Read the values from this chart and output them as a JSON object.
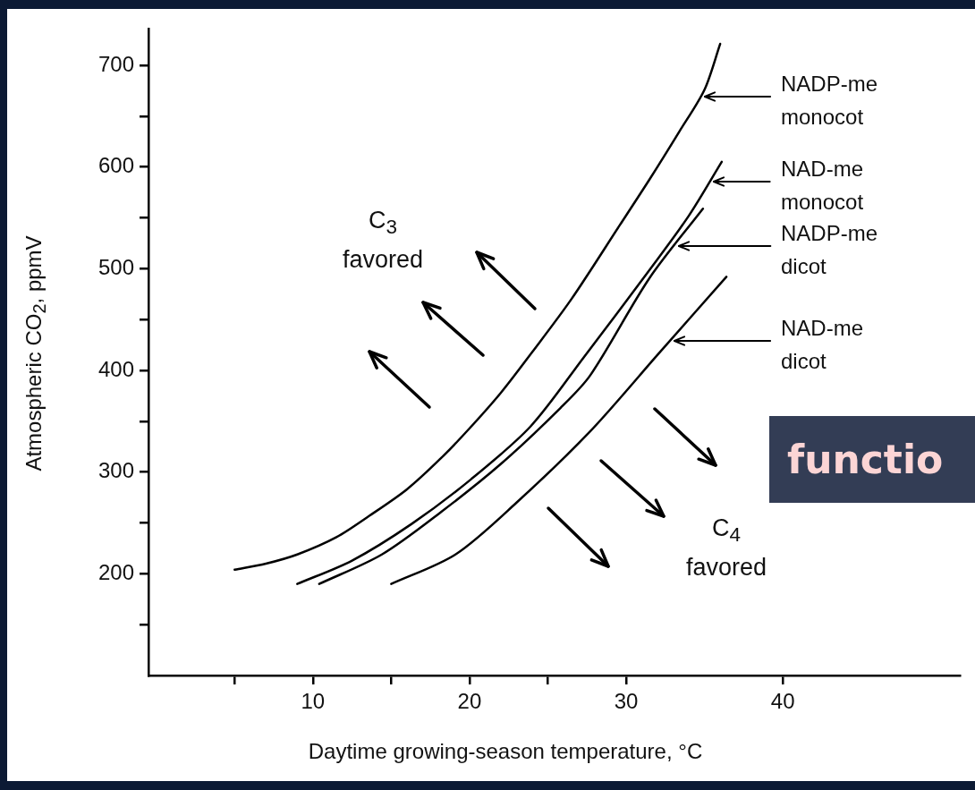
{
  "chart_data": {
    "type": "line",
    "xlabel": "Daytime growing-season temperature, °C",
    "ylabel": "Atmospheric CO$_{2}$, ppmV",
    "xlim": [
      -0.5,
      51.3
    ],
    "ylim": [
      100,
      736
    ],
    "xticks": [
      {
        "value": 5,
        "label": null
      },
      10,
      {
        "value": 15,
        "label": null
      },
      20,
      {
        "value": 25,
        "label": null
      },
      30,
      40
    ],
    "yticks": [
      {
        "value": 150,
        "label": null
      },
      200,
      {
        "value": 250,
        "label": null
      },
      300,
      {
        "value": 350,
        "label": null
      },
      400,
      {
        "value": 450,
        "label": null
      },
      500,
      {
        "value": 550,
        "label": null
      },
      600,
      {
        "value": 650,
        "label": null
      },
      700
    ],
    "grid": false,
    "legend": "right",
    "series": [
      {
        "name": "NADP-me monocot",
        "color": "#000000",
        "x": [
          5,
          7,
          9,
          11.5,
          13.6,
          16,
          18.2,
          20,
          22,
          24,
          26.5,
          29.6,
          31.5,
          33.4,
          35,
          36
        ],
        "values": [
          204,
          210,
          219,
          236,
          257,
          283,
          314,
          343,
          378,
          418,
          470,
          543,
          588,
          635,
          676,
          721
        ]
      },
      {
        "name": "NAD-me monocot",
        "color": "#000000",
        "x": [
          9,
          12.5,
          16.3,
          20.1,
          23.9,
          27.3,
          31.5,
          34,
          36.1
        ],
        "values": [
          190,
          213,
          249,
          293,
          345,
          413,
          499,
          552,
          605
        ]
      },
      {
        "name": "NADP-me dicot",
        "color": "#000000",
        "x": [
          10.4,
          14.4,
          18.2,
          22,
          25.8,
          27.7,
          31.5,
          34.9
        ],
        "values": [
          190,
          219,
          261,
          308,
          363,
          395,
          491,
          559
        ]
      },
      {
        "name": "NAD-me dicot",
        "color": "#000000",
        "x": [
          15,
          19.1,
          23,
          27.7,
          32.1,
          36.4
        ],
        "values": [
          190,
          219,
          270,
          340,
          417,
          492
        ]
      }
    ],
    "annotations": [
      "C$_{3}$ favored",
      "C$_{4}$ favored",
      "functio"
    ]
  }
}
